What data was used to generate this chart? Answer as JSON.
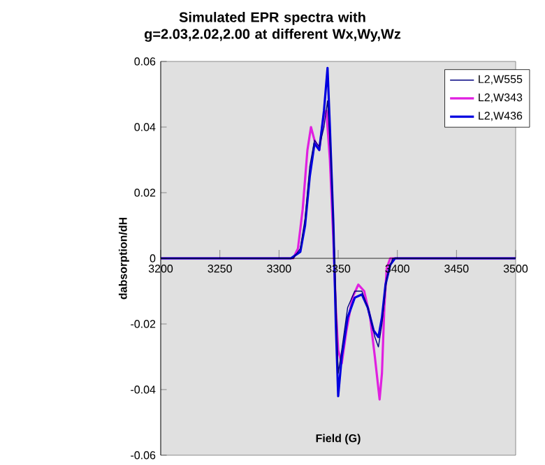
{
  "chart_data": {
    "type": "line",
    "title": "Simulated EPR spectra with g=2.03,2.02,2.00 at different Wx,Wy,Wz",
    "xlabel": "Field (G)",
    "ylabel": "dabsorption/dH",
    "xlim": [
      3200,
      3500
    ],
    "xticks": [
      3200,
      3250,
      3300,
      3350,
      3400,
      3450,
      3500
    ],
    "ylim": [
      -0.06,
      0.06
    ],
    "yticks": [
      -0.06,
      -0.04,
      -0.02,
      0,
      0.02,
      0.04,
      0.06
    ],
    "legend": "top right",
    "series": [
      {
        "name": "L2,W555",
        "color": "#000080",
        "x": [
          3200,
          3312,
          3318,
          3322,
          3326,
          3330,
          3334,
          3338,
          3341,
          3344,
          3347,
          3350,
          3353,
          3358,
          3364,
          3370,
          3376,
          3381,
          3384,
          3387,
          3391,
          3396,
          3500
        ],
        "values": [
          0,
          0,
          0.003,
          0.012,
          0.028,
          0.036,
          0.034,
          0.04,
          0.048,
          0.03,
          0.0,
          -0.035,
          -0.028,
          -0.015,
          -0.01,
          -0.01,
          -0.016,
          -0.024,
          -0.027,
          -0.02,
          -0.006,
          0,
          0
        ]
      },
      {
        "name": "L2,W343",
        "color": "#e020e0",
        "x": [
          3200,
          3312,
          3316,
          3320,
          3324,
          3327,
          3330,
          3334,
          3338,
          3340,
          3343,
          3346,
          3348,
          3350,
          3353,
          3357,
          3362,
          3367,
          3372,
          3377,
          3381,
          3385,
          3387,
          3389,
          3391,
          3394,
          3500
        ],
        "values": [
          0,
          0,
          0.003,
          0.015,
          0.033,
          0.04,
          0.036,
          0.033,
          0.044,
          0.045,
          0.03,
          0.005,
          -0.015,
          -0.028,
          -0.032,
          -0.022,
          -0.012,
          -0.008,
          -0.01,
          -0.018,
          -0.03,
          -0.043,
          -0.035,
          -0.015,
          -0.003,
          0,
          0
        ]
      },
      {
        "name": "L2,W436",
        "color": "#0000e0",
        "x": [
          3200,
          3310,
          3318,
          3322,
          3326,
          3330,
          3334,
          3338,
          3341,
          3343,
          3346,
          3348,
          3350,
          3353,
          3358,
          3364,
          3370,
          3375,
          3380,
          3384,
          3387,
          3390,
          3394,
          3398,
          3500
        ],
        "values": [
          0,
          0,
          0.002,
          0.01,
          0.025,
          0.035,
          0.033,
          0.045,
          0.058,
          0.04,
          0.01,
          -0.02,
          -0.042,
          -0.03,
          -0.018,
          -0.012,
          -0.011,
          -0.015,
          -0.022,
          -0.024,
          -0.018,
          -0.008,
          -0.002,
          0,
          0
        ]
      }
    ]
  }
}
